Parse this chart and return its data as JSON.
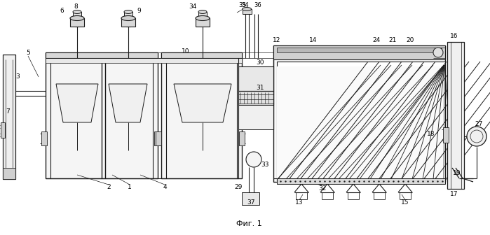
{
  "title": "Фиг. 1",
  "bg": "#ffffff",
  "lc": "#1a1a1a",
  "gray1": "#c8c8c8",
  "gray2": "#e0e0e0",
  "gray3": "#a0a0a0",
  "hatch_gray": "#888888"
}
